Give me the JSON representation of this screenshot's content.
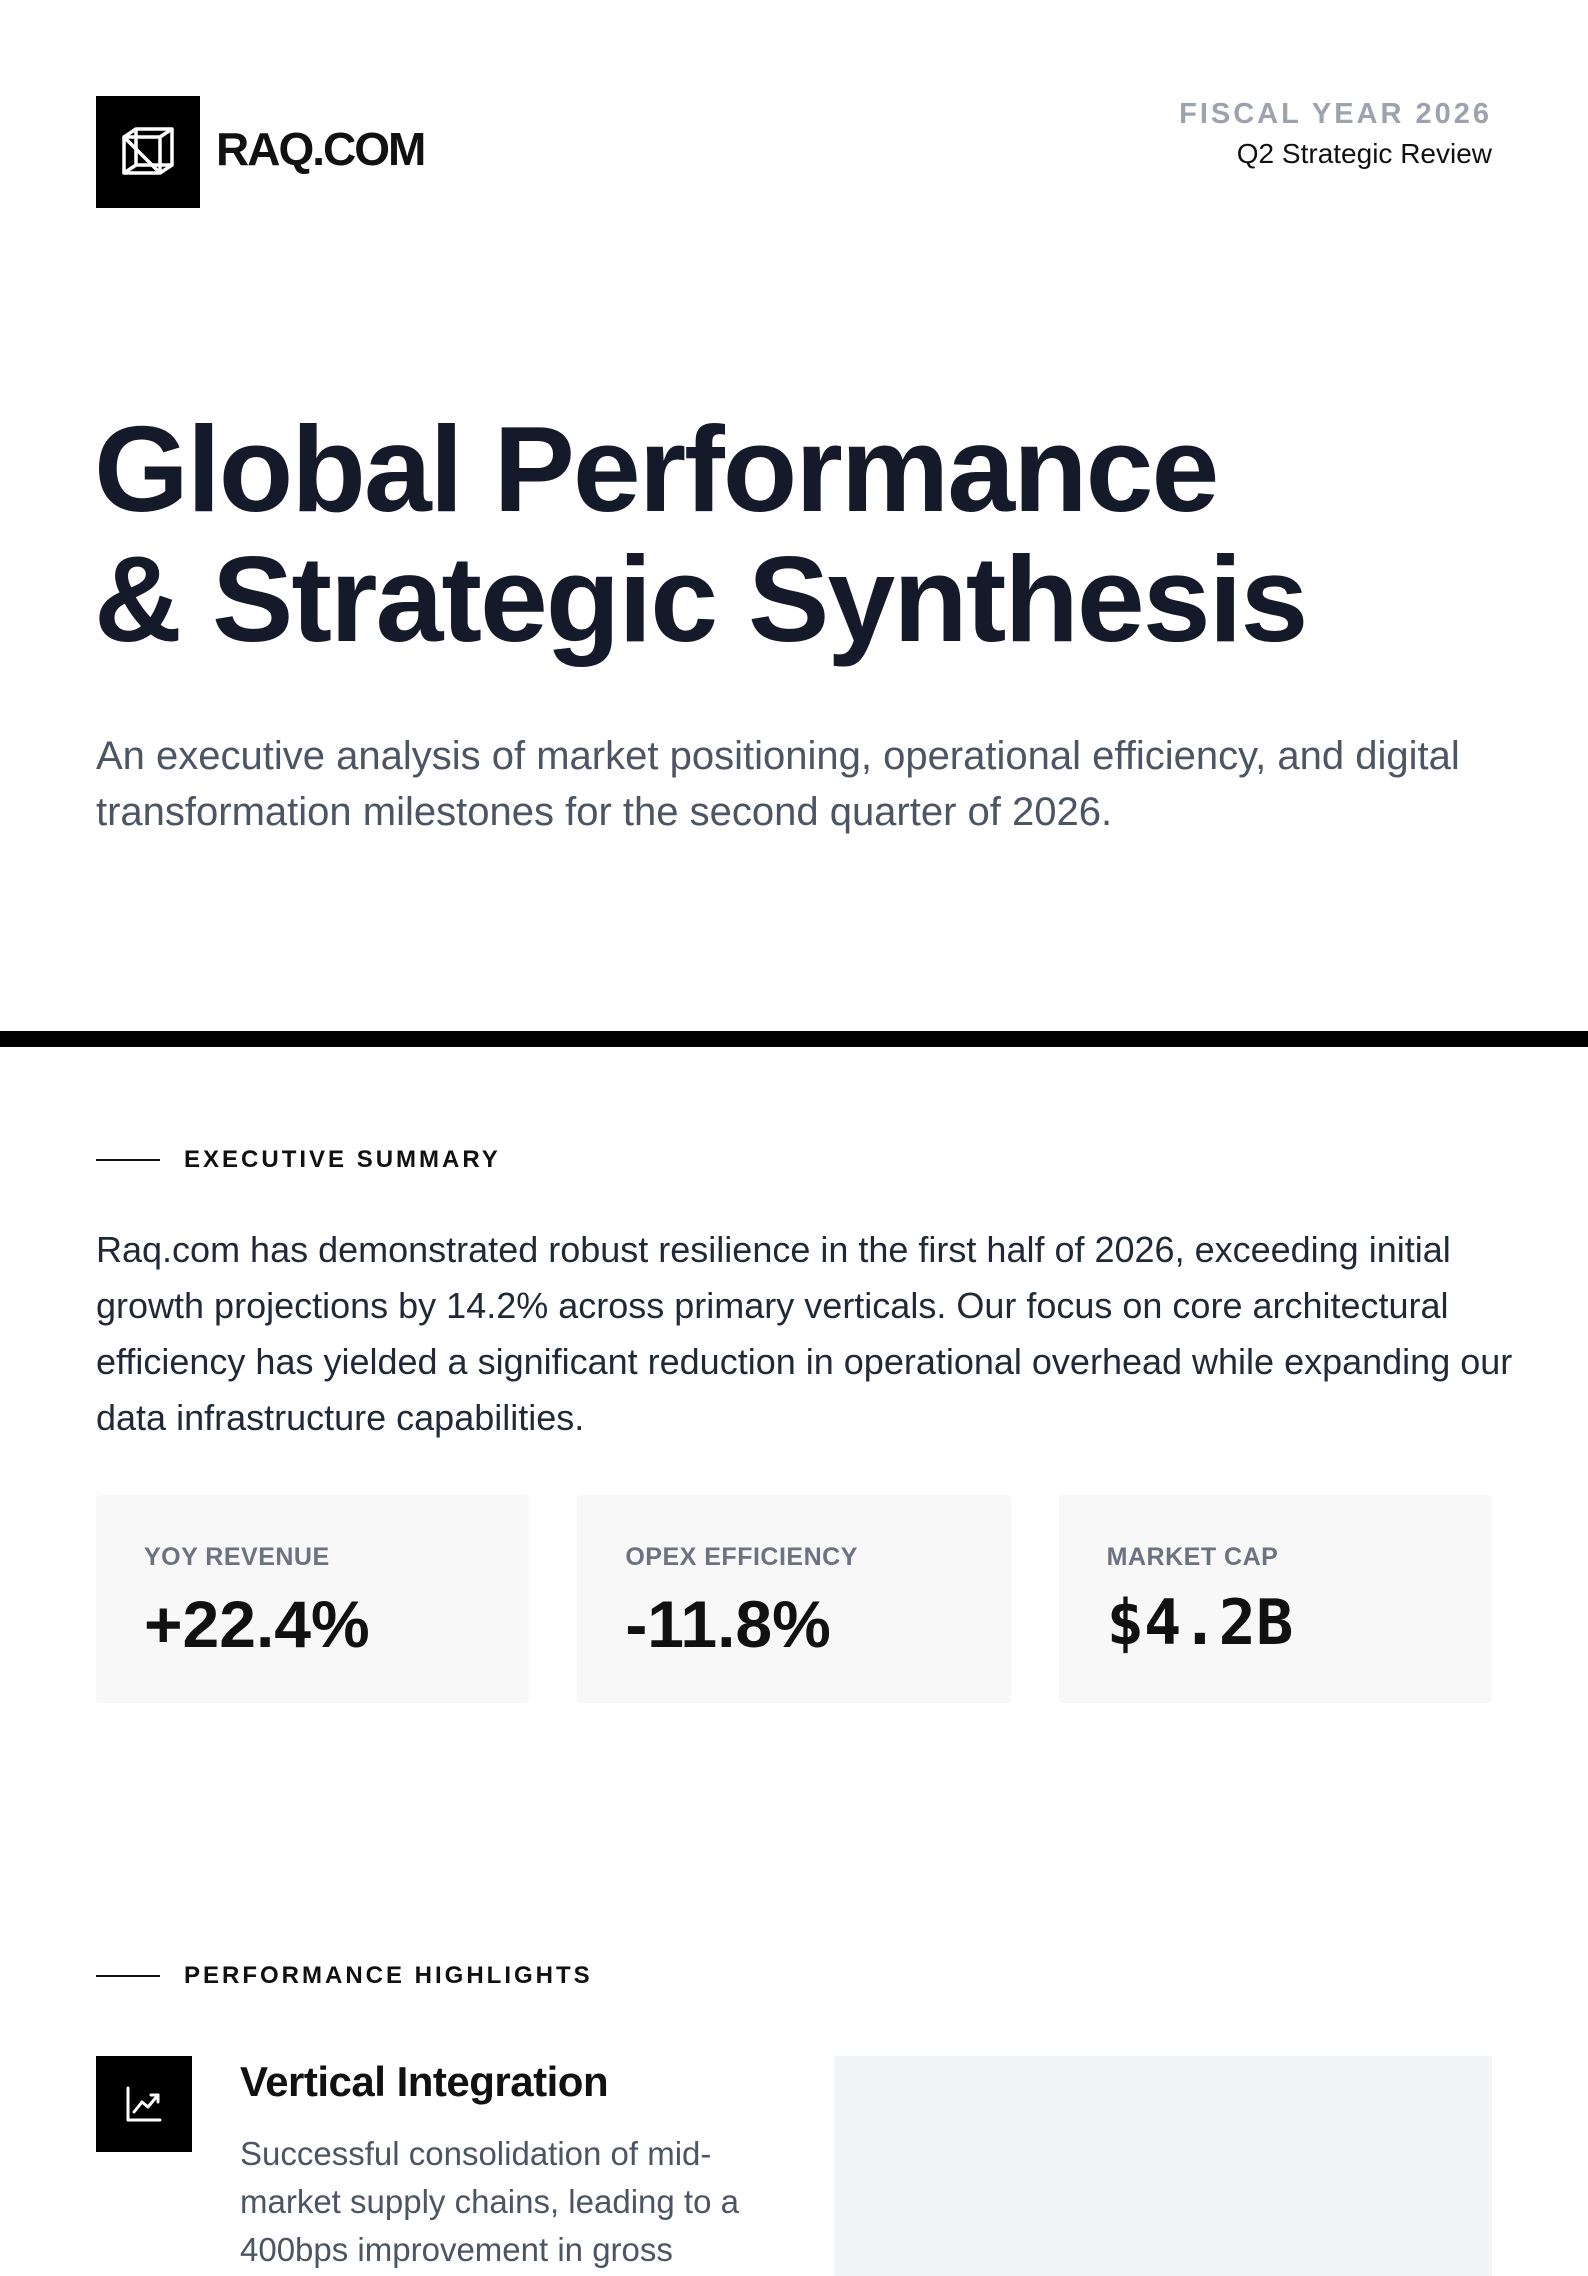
{
  "header": {
    "brand": "RAQ.COM",
    "logo_icon": "cube-icon",
    "fiscal_year": "FISCAL YEAR 2026",
    "review": "Q2 Strategic Review"
  },
  "hero": {
    "title_line1": "Global Performance",
    "title_line2": "& Strategic Synthesis",
    "subtitle": "An executive analysis of market positioning, operational efficiency, and digital transformation milestones for the second quarter of 2026."
  },
  "executive_summary": {
    "label": "EXECUTIVE SUMMARY",
    "body": "Raq.com has demonstrated robust resilience in the first half of 2026, exceeding initial growth projections by 14.2% across primary verticals. Our focus on core architectural efficiency has yielded a significant reduction in operational overhead while expanding our data infrastructure capabilities.",
    "metrics": [
      {
        "label": "YOY REVENUE",
        "value": "+22.4%"
      },
      {
        "label": "OPEX EFFICIENCY",
        "value": "-11.8%"
      },
      {
        "label": "MARKET CAP",
        "value": "$4.2B"
      }
    ]
  },
  "performance": {
    "label": "PERFORMANCE HIGHLIGHTS",
    "items": [
      {
        "icon": "trending-up-icon",
        "title": "Vertical Integration",
        "text": "Successful consolidation of mid-market supply chains, leading to a 400bps improvement in gross"
      }
    ]
  },
  "colors": {
    "ink": "#141a29",
    "muted": "#4b5563",
    "label_gray": "#9ca3af",
    "card_bg": "#f8f8f8"
  }
}
